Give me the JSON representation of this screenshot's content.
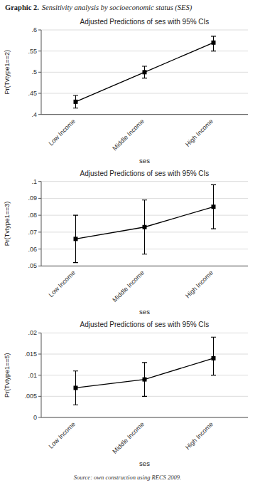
{
  "title": "Graphic 2.",
  "subtitle": "Sensitivity analysis by socioeconomic status (SES)",
  "source": "Source: own construction using RECS 2009.",
  "chart_data": [
    {
      "type": "line",
      "title": "Adjusted Predictions of ses with 95% CIs",
      "x_label": "ses",
      "y_label": "Pr(Tvtype1==2)",
      "categories": [
        "Low Income",
        "Middle Income",
        "High Income"
      ],
      "series": [
        {
          "color": "#000000",
          "marker": "square",
          "values": [
            0.43,
            0.5,
            0.57
          ],
          "ci_low": [
            0.415,
            0.486,
            0.55
          ],
          "ci_high": [
            0.445,
            0.514,
            0.585
          ]
        }
      ],
      "ylim": [
        0.4,
        0.6
      ],
      "yticks": [
        {
          "value": 0.4,
          "label": ".4"
        },
        {
          "value": 0.45,
          "label": ".45"
        },
        {
          "value": 0.5,
          "label": ".5"
        },
        {
          "value": 0.55,
          "label": ".55"
        },
        {
          "value": 0.6,
          "label": ".6"
        }
      ],
      "grid": true
    },
    {
      "type": "line",
      "title": "Adjusted Predictions of ses with 95% CIs",
      "x_label": "ses",
      "y_label": "Pr(Tvtype1==3)",
      "categories": [
        "Low Income",
        "Middle Income",
        "High Income"
      ],
      "series": [
        {
          "color": "#000000",
          "marker": "square",
          "values": [
            0.066,
            0.073,
            0.085
          ],
          "ci_low": [
            0.052,
            0.057,
            0.072
          ],
          "ci_high": [
            0.08,
            0.089,
            0.098
          ]
        }
      ],
      "ylim": [
        0.05,
        0.1
      ],
      "yticks": [
        {
          "value": 0.05,
          "label": ".05"
        },
        {
          "value": 0.06,
          "label": ".06"
        },
        {
          "value": 0.07,
          "label": ".07"
        },
        {
          "value": 0.08,
          "label": ".08"
        },
        {
          "value": 0.09,
          "label": ".09"
        },
        {
          "value": 0.1,
          "label": ".1"
        }
      ],
      "grid": true
    },
    {
      "type": "line",
      "title": "Adjusted Predictions of ses with 95% CIs",
      "x_label": "ses",
      "y_label": "Pr(Tvtype1==5)",
      "categories": [
        "Low Income",
        "Middle Income",
        "High Income"
      ],
      "series": [
        {
          "color": "#000000",
          "marker": "square",
          "values": [
            0.007,
            0.009,
            0.014
          ],
          "ci_low": [
            0.003,
            0.005,
            0.01
          ],
          "ci_high": [
            0.011,
            0.013,
            0.019
          ]
        }
      ],
      "ylim": [
        0.0,
        0.02
      ],
      "yticks": [
        0,
        {
          "value": 0.005,
          "label": ".005"
        },
        {
          "value": 0.01,
          "label": ".01"
        },
        {
          "value": 0.015,
          "label": ".015"
        },
        {
          "value": 0.02,
          "label": ".02"
        }
      ],
      "grid": true
    }
  ]
}
